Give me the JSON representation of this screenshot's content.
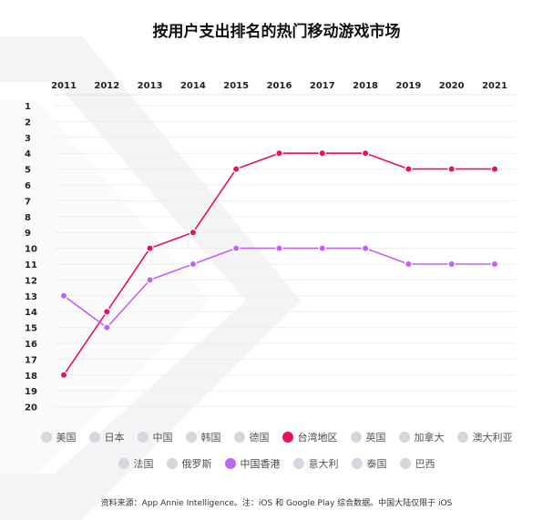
{
  "title": "按用户支出排名的热门移动游戏市场",
  "source_note": "资料来源：App Annie Intelligence。注：iOS 和 Google Play 综合数据。中国大陆仅限于 iOS",
  "colors": {
    "taiwan": "#e8115b",
    "hongkong": "#c064f0",
    "inactive": "#d3d7de",
    "grid": "#eeeeee"
  },
  "legend": {
    "row1": [
      {
        "label": "美国",
        "active": false,
        "color": "#d3d7de"
      },
      {
        "label": "日本",
        "active": false,
        "color": "#d3d7de"
      },
      {
        "label": "中国",
        "active": false,
        "color": "#d3d7de"
      },
      {
        "label": "韩国",
        "active": false,
        "color": "#d3d7de"
      },
      {
        "label": "德国",
        "active": false,
        "color": "#d3d7de"
      },
      {
        "label": "台湾地区",
        "active": true,
        "color": "#e8115b"
      },
      {
        "label": "英国",
        "active": false,
        "color": "#d3d7de"
      },
      {
        "label": "加拿大",
        "active": false,
        "color": "#d3d7de"
      },
      {
        "label": "澳大利亚",
        "active": false,
        "color": "#d3d7de"
      }
    ],
    "row2": [
      {
        "label": "法国",
        "active": false,
        "color": "#d3d7de"
      },
      {
        "label": "俄罗斯",
        "active": false,
        "color": "#d3d7de"
      },
      {
        "label": "中国香港",
        "active": true,
        "color": "#c064f0"
      },
      {
        "label": "意大利",
        "active": false,
        "color": "#d3d7de"
      },
      {
        "label": "泰国",
        "active": false,
        "color": "#d3d7de"
      },
      {
        "label": "巴西",
        "active": false,
        "color": "#d3d7de"
      }
    ]
  },
  "chart_data": {
    "type": "line",
    "title": "按用户支出排名的热门移动游戏市场",
    "x": [
      "2011",
      "2012",
      "2013",
      "2014",
      "2015",
      "2016",
      "2017",
      "2018",
      "2019",
      "2020",
      "2021"
    ],
    "y_ticks": [
      "1",
      "2",
      "3",
      "4",
      "5",
      "6",
      "7",
      "8",
      "9",
      "10",
      "11",
      "12",
      "13",
      "14",
      "15",
      "16",
      "17",
      "18",
      "19",
      "20"
    ],
    "ylim": [
      1,
      20
    ],
    "y_inverted": true,
    "x_axis_position": "top",
    "grid": true,
    "series": [
      {
        "name": "台湾地区",
        "color": "#e8115b",
        "values": [
          18,
          14,
          10,
          9,
          5,
          4,
          4,
          4,
          5,
          5,
          5
        ]
      },
      {
        "name": "中国香港",
        "color": "#c064f0",
        "values": [
          13,
          15,
          12,
          11,
          10,
          10,
          10,
          10,
          11,
          11,
          11
        ]
      }
    ]
  }
}
